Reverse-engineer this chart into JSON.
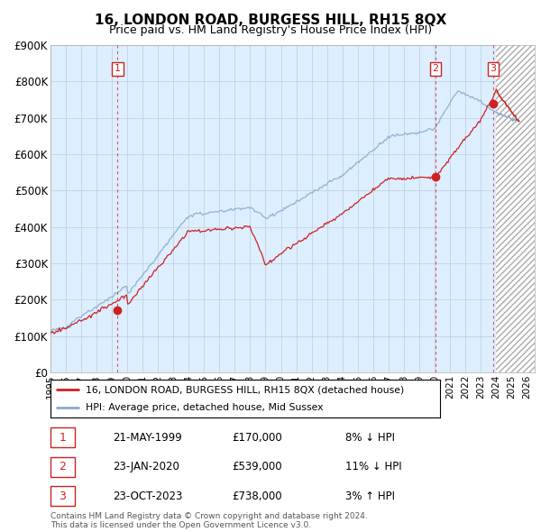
{
  "title": "16, LONDON ROAD, BURGESS HILL, RH15 8QX",
  "subtitle": "Price paid vs. HM Land Registry's House Price Index (HPI)",
  "ylabel_values": [
    "£0",
    "£100K",
    "£200K",
    "£300K",
    "£400K",
    "£500K",
    "£600K",
    "£700K",
    "£800K",
    "£900K"
  ],
  "ylim": [
    0,
    900000
  ],
  "xlim_start": 1995.0,
  "xlim_end": 2026.5,
  "hatch_start": 2024.0,
  "sale_dates_num": [
    1999.38,
    2020.06,
    2023.81
  ],
  "sale_prices": [
    170000,
    539000,
    738000
  ],
  "sale_labels": [
    "1",
    "2",
    "3"
  ],
  "sale_info": [
    {
      "label": "1",
      "date": "21-MAY-1999",
      "price": "£170,000",
      "pct": "8%",
      "dir": "↓",
      "rel": "HPI"
    },
    {
      "label": "2",
      "date": "23-JAN-2020",
      "price": "£539,000",
      "pct": "11%",
      "dir": "↓",
      "rel": "HPI"
    },
    {
      "label": "3",
      "date": "23-OCT-2023",
      "price": "£738,000",
      "pct": "3%",
      "dir": "↑",
      "rel": "HPI"
    }
  ],
  "legend_line1": "16, LONDON ROAD, BURGESS HILL, RH15 8QX (detached house)",
  "legend_line2": "HPI: Average price, detached house, Mid Sussex",
  "footer1": "Contains HM Land Registry data © Crown copyright and database right 2024.",
  "footer2": "This data is licensed under the Open Government Licence v3.0.",
  "line_color_red": "#cc2222",
  "line_color_blue": "#88aacc",
  "background_color": "#ffffff",
  "chart_bg_color": "#ddeeff",
  "grid_color": "#bbccdd",
  "dashed_color": "#dd4444"
}
